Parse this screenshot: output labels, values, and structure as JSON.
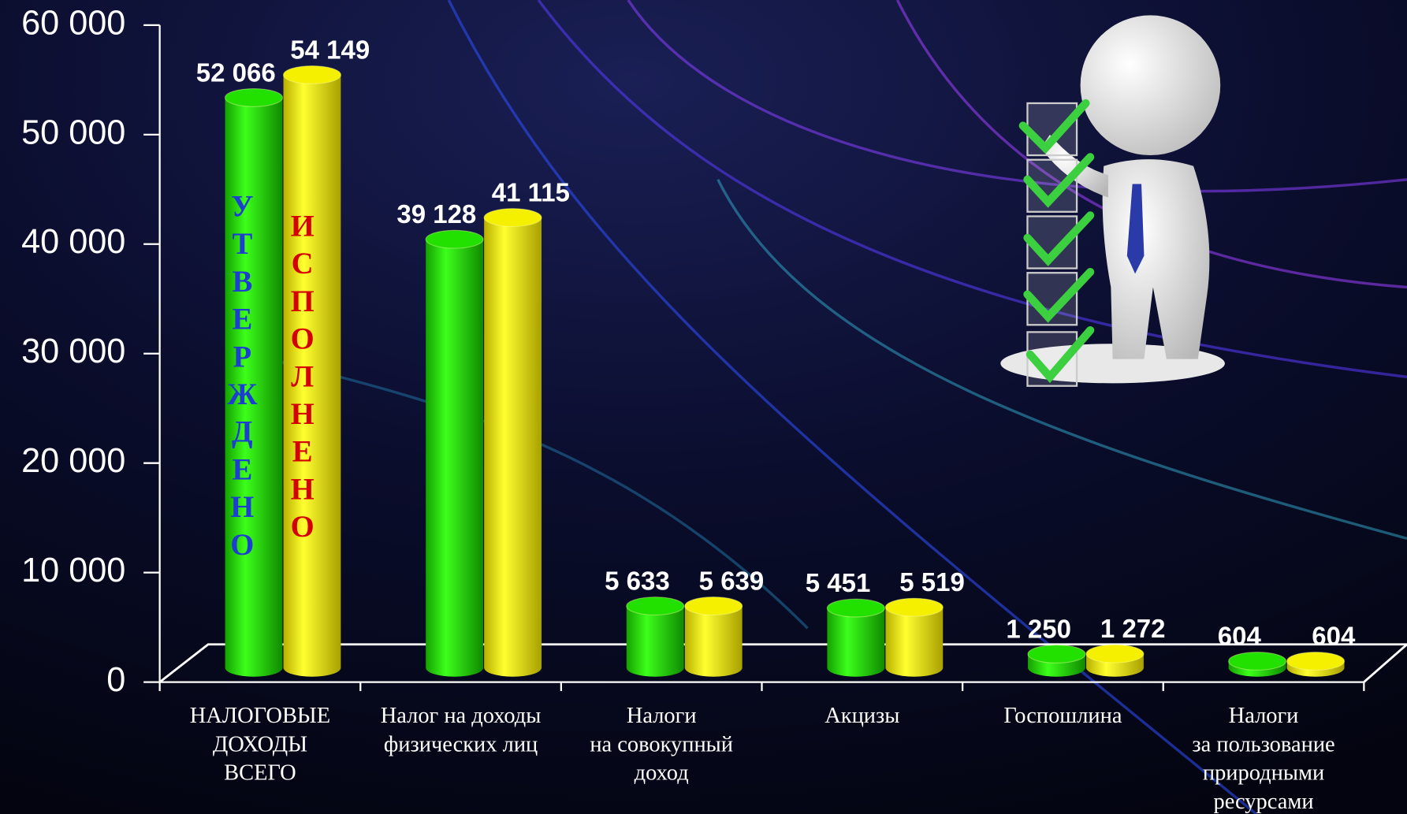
{
  "chart_data": {
    "type": "bar3d",
    "categories": [
      [
        "НАЛОГОВЫЕ",
        "ДОХОДЫ",
        "ВСЕГО"
      ],
      [
        "Налог на доходы",
        "физических лиц"
      ],
      [
        "Налоги",
        "на совокупный",
        "доход"
      ],
      [
        "Акцизы"
      ],
      [
        "Госпошлина"
      ],
      [
        "Налоги",
        "за пользование",
        "природными",
        "ресурсами"
      ]
    ],
    "series": [
      {
        "name": "УТВЕРЖДЕНО",
        "color": "#22e000",
        "values": [
          52066,
          39128,
          5633,
          5451,
          1250,
          604
        ],
        "value_labels": [
          "52 066",
          "39 128",
          "5 633",
          "5 451",
          "1 250",
          "604"
        ]
      },
      {
        "name": "ИСПОЛНЕНО",
        "color": "#f4f000",
        "values": [
          54149,
          41115,
          5639,
          5519,
          1272,
          604
        ],
        "value_labels": [
          "54 149",
          "41 115",
          "5 639",
          "5 519",
          "1 272",
          "604"
        ]
      }
    ],
    "ylim": [
      0,
      60000
    ],
    "yticks": [
      {
        "value": 0,
        "label": "0"
      },
      {
        "value": 10000,
        "label": "10 000"
      },
      {
        "value": 20000,
        "label": "20 000"
      },
      {
        "value": 30000,
        "label": "30 000"
      },
      {
        "value": 40000,
        "label": "40 000"
      },
      {
        "value": 50000,
        "label": "50 000"
      },
      {
        "value": 60000,
        "label": "60 000"
      }
    ]
  }
}
